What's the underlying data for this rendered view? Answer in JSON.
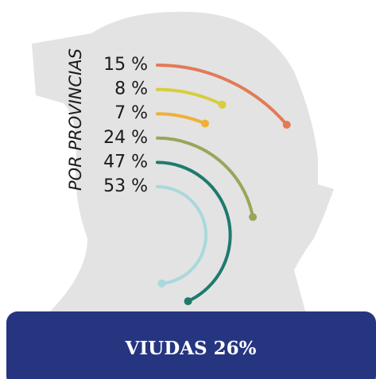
{
  "chart_data": {
    "type": "radial_bar",
    "title": "POR PROVINCIAS",
    "values": [
      15,
      8,
      7,
      24,
      47,
      53
    ],
    "value_labels": [
      "15 %",
      "8 %",
      "7 %",
      "24 %",
      "47 %",
      "53 %"
    ],
    "colors": [
      "#e27a58",
      "#d8cd3c",
      "#f0b03a",
      "#98a65a",
      "#1f7a6e",
      "#a9d8dc"
    ]
  },
  "banner": {
    "text": "VIUDAS 26%"
  }
}
